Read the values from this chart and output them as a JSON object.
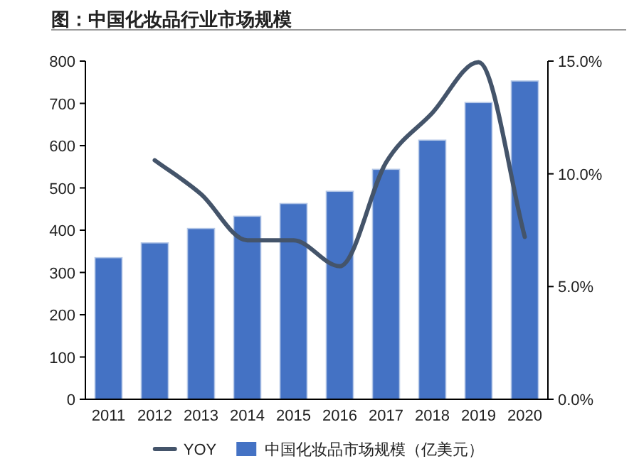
{
  "chart_data": {
    "type": "bar",
    "title": "图：中国化妆品行业市场规模",
    "categories": [
      "2011",
      "2012",
      "2013",
      "2014",
      "2015",
      "2016",
      "2017",
      "2018",
      "2019",
      "2020"
    ],
    "series": [
      {
        "name": "YOY",
        "type": "line",
        "axis": "y2",
        "color": "#44546a",
        "values": [
          null,
          10.6,
          9.1,
          7.05,
          7.05,
          5.9,
          10.5,
          12.7,
          14.95,
          7.2
        ]
      },
      {
        "name": "中国化妆品市场规模（亿美元）",
        "color": "#4472c4",
        "values": [
          335,
          370,
          404,
          433,
          463,
          492,
          544,
          613,
          702,
          753
        ]
      }
    ],
    "ylim": [
      0,
      800
    ],
    "yticks": [
      0,
      100,
      200,
      300,
      400,
      500,
      600,
      700,
      800
    ],
    "y2lim": [
      0,
      15
    ],
    "y2ticks": [
      {
        "value": 0,
        "label": "0.0%"
      },
      {
        "value": 5,
        "label": "5.0%"
      },
      {
        "value": 10,
        "label": "10.0%"
      },
      {
        "value": 15,
        "label": "15.0%"
      }
    ],
    "grid": false,
    "legend": "bottom"
  }
}
